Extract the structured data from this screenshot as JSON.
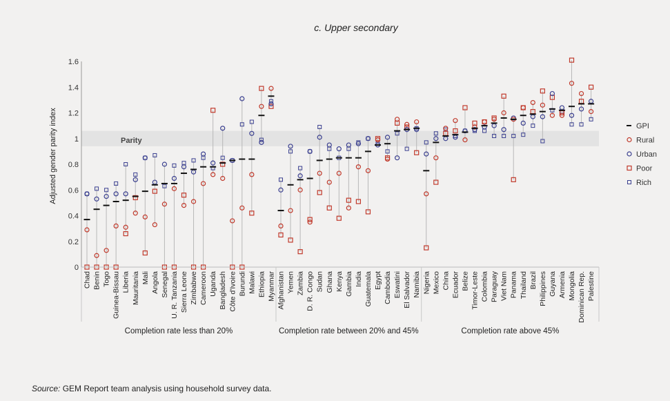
{
  "chart_data": {
    "type": "scatter",
    "title": "c. Upper secondary",
    "ylabel": "Adjusted gender parity index",
    "ylim": [
      0,
      1.6
    ],
    "yticks": [
      "0",
      "0.2",
      "0.4",
      "0.6",
      "0.8",
      "1",
      "1.2",
      "1.4",
      "1.6"
    ],
    "parity_label": "Parity",
    "parity_band": [
      0.94,
      1.06
    ],
    "legend": [
      {
        "key": "gpi",
        "label": "GPI"
      },
      {
        "key": "rural",
        "label": "Rural"
      },
      {
        "key": "urban",
        "label": "Urban"
      },
      {
        "key": "poor",
        "label": "Poor"
      },
      {
        "key": "rich",
        "label": "Rich"
      }
    ],
    "colors": {
      "red": "#c0392b",
      "blue": "#3a3f8f",
      "line": "#b8b8b8",
      "band": "#e3e3e3"
    },
    "groups": [
      {
        "label": "Completion rate less than 20%",
        "countries": [
          {
            "name": "Chad",
            "gpi": 0.37,
            "rural": 0.29,
            "urban": 0.57,
            "poor": 0.0,
            "rich": 0.57
          },
          {
            "name": "Benin",
            "gpi": 0.45,
            "rural": 0.09,
            "urban": 0.53,
            "poor": 0.0,
            "rich": 0.61
          },
          {
            "name": "Togo",
            "gpi": 0.48,
            "rural": 0.13,
            "urban": 0.55,
            "poor": 0.0,
            "rich": 0.6
          },
          {
            "name": "Guinea-Bissau",
            "gpi": 0.51,
            "rural": 0.32,
            "urban": 0.57,
            "poor": 0.0,
            "rich": 0.65
          },
          {
            "name": "Liberia",
            "gpi": 0.52,
            "rural": 0.31,
            "urban": 0.57,
            "poor": 0.26,
            "rich": 0.8
          },
          {
            "name": "Mauritania",
            "gpi": 0.55,
            "rural": 0.42,
            "urban": 0.68,
            "poor": 0.54,
            "rich": 0.72
          },
          {
            "name": "Mali",
            "gpi": 0.59,
            "rural": 0.39,
            "urban": 0.85,
            "poor": 0.11,
            "rich": 0.85
          },
          {
            "name": "Angola",
            "gpi": 0.64,
            "rural": 0.33,
            "urban": 0.66,
            "poor": 0.59,
            "rich": 0.87
          },
          {
            "name": "Senegal",
            "gpi": 0.65,
            "rural": 0.49,
            "urban": 0.8,
            "poor": 0.0,
            "rich": 0.63
          },
          {
            "name": "U. R. Tanzania",
            "gpi": 0.65,
            "rural": 0.61,
            "urban": 0.69,
            "poor": 0.0,
            "rich": 0.79
          },
          {
            "name": "Sierra Leone",
            "gpi": 0.73,
            "rural": 0.48,
            "urban": 0.78,
            "poor": 0.56,
            "rich": 0.81
          },
          {
            "name": "Zimbabwe",
            "gpi": 0.76,
            "rural": 0.51,
            "urban": 0.74,
            "poor": 0.0,
            "rich": 0.83
          },
          {
            "name": "Cameroon",
            "gpi": 0.78,
            "rural": 0.65,
            "urban": 0.88,
            "poor": 0.0,
            "rich": 0.85
          },
          {
            "name": "Uganda",
            "gpi": 0.78,
            "rural": 0.72,
            "urban": 0.81,
            "poor": 1.22,
            "rich": 0.77
          },
          {
            "name": "Bangladesh",
            "gpi": 0.81,
            "rural": 0.69,
            "urban": 1.08,
            "poor": 0.8,
            "rich": 0.85
          },
          {
            "name": "Côte d'Ivoire",
            "gpi": 0.83,
            "rural": 0.36,
            "urban": 0.83,
            "poor": 0.0,
            "rich": 0.83
          },
          {
            "name": "Burundi",
            "gpi": 0.84,
            "rural": 0.46,
            "urban": 1.31,
            "poor": 0.0,
            "rich": 1.11
          },
          {
            "name": "Malawi",
            "gpi": 0.84,
            "rural": 0.72,
            "urban": 1.04,
            "poor": 0.42,
            "rich": 1.13
          },
          {
            "name": "Ethiopia",
            "gpi": 1.18,
            "rural": 1.25,
            "urban": 0.97,
            "poor": 1.39,
            "rich": 0.99
          },
          {
            "name": "Myanmar",
            "gpi": 1.33,
            "rural": 1.39,
            "urban": 1.27,
            "poor": 1.25,
            "rich": 1.29
          }
        ]
      },
      {
        "label": "Completion rate between 20% and 45%",
        "countries": [
          {
            "name": "Afghanistan",
            "gpi": 0.44,
            "rural": 0.32,
            "urban": 0.6,
            "poor": 0.25,
            "rich": 0.68
          },
          {
            "name": "Yemen",
            "gpi": 0.64,
            "rural": 0.44,
            "urban": 0.94,
            "poor": 0.21,
            "rich": 0.9
          },
          {
            "name": "Zambia",
            "gpi": 0.68,
            "rural": 0.6,
            "urban": 0.71,
            "poor": 0.12,
            "rich": 0.77
          },
          {
            "name": "D. R. Congo",
            "gpi": 0.69,
            "rural": 0.35,
            "urban": 0.9,
            "poor": 0.37,
            "rich": 0.9
          },
          {
            "name": "Sudan",
            "gpi": 0.83,
            "rural": 0.73,
            "urban": 1.01,
            "poor": 0.58,
            "rich": 1.09
          },
          {
            "name": "Ghana",
            "gpi": 0.84,
            "rural": 0.66,
            "urban": 0.95,
            "poor": 0.46,
            "rich": 0.92
          },
          {
            "name": "Kenya",
            "gpi": 0.85,
            "rural": 0.73,
            "urban": 0.92,
            "poor": 0.38,
            "rich": 0.85
          },
          {
            "name": "Gambia",
            "gpi": 0.85,
            "rural": 0.46,
            "urban": 0.95,
            "poor": 0.52,
            "rich": 0.92
          },
          {
            "name": "India",
            "gpi": 0.85,
            "rural": 0.78,
            "urban": 0.96,
            "poor": 0.51,
            "rich": 0.97
          },
          {
            "name": "Guatemala",
            "gpi": 0.9,
            "rural": 0.75,
            "urban": 1.0,
            "poor": 0.43,
            "rich": 1.0
          },
          {
            "name": "Egypt",
            "gpi": 0.95,
            "rural": 0.99,
            "urban": 0.95,
            "poor": 1.0,
            "rich": 0.96
          },
          {
            "name": "Cambodia",
            "gpi": 0.96,
            "rural": 0.84,
            "urban": 1.01,
            "poor": 0.85,
            "rich": 0.9
          },
          {
            "name": "Eswatini",
            "gpi": 1.06,
            "rural": 1.15,
            "urban": 0.85,
            "poor": 1.12,
            "rich": 1.04
          },
          {
            "name": "El Salvador",
            "gpi": 1.07,
            "rural": 1.11,
            "urban": 1.07,
            "poor": 1.09,
            "rich": 0.92
          },
          {
            "name": "Namibia",
            "gpi": 1.08,
            "rural": 1.13,
            "urban": 1.07,
            "poor": 0.89,
            "rich": 1.08
          }
        ]
      },
      {
        "label": "Completion rate above 45%",
        "countries": [
          {
            "name": "Nigeria",
            "gpi": 0.75,
            "rural": 0.57,
            "urban": 0.88,
            "poor": 0.15,
            "rich": 0.97
          },
          {
            "name": "Mexico",
            "gpi": 0.97,
            "rural": 0.85,
            "urban": 1.0,
            "poor": 0.66,
            "rich": 1.04
          },
          {
            "name": "China",
            "gpi": 1.02,
            "rural": 1.08,
            "urban": 1.0,
            "poor": 1.04,
            "rich": 1.07
          },
          {
            "name": "Ecuador",
            "gpi": 1.03,
            "rural": 1.14,
            "urban": 1.01,
            "poor": 1.06,
            "rich": 1.02
          },
          {
            "name": "Belize",
            "gpi": 1.05,
            "rural": 0.99,
            "urban": 1.06,
            "poor": 1.24,
            "rich": 1.06
          },
          {
            "name": "Timor-Leste",
            "gpi": 1.08,
            "rural": 1.09,
            "urban": 1.07,
            "poor": 1.12,
            "rich": 1.06
          },
          {
            "name": "Colombia",
            "gpi": 1.1,
            "rural": 1.13,
            "urban": 1.09,
            "poor": 1.13,
            "rich": 1.06
          },
          {
            "name": "Paraguay",
            "gpi": 1.12,
            "rural": 1.15,
            "urban": 1.1,
            "poor": 1.16,
            "rich": 1.02
          },
          {
            "name": "Viet Nam",
            "gpi": 1.16,
            "rural": 1.2,
            "urban": 1.07,
            "poor": 1.33,
            "rich": 1.02
          },
          {
            "name": "Panama",
            "gpi": 1.15,
            "rural": 1.15,
            "urban": 1.16,
            "poor": 0.68,
            "rich": 1.02
          },
          {
            "name": "Thailand",
            "gpi": 1.18,
            "rural": 1.24,
            "urban": 1.12,
            "poor": 1.24,
            "rich": 1.03
          },
          {
            "name": "Brazil",
            "gpi": 1.19,
            "rural": 1.28,
            "urban": 1.17,
            "poor": 1.21,
            "rich": 1.1
          },
          {
            "name": "Philippines",
            "gpi": 1.21,
            "rural": 1.26,
            "urban": 1.17,
            "poor": 1.37,
            "rich": 0.98
          },
          {
            "name": "Guyana",
            "gpi": 1.23,
            "rural": 1.18,
            "urban": 1.35,
            "poor": 1.32,
            "rich": 1.22
          },
          {
            "name": "Armenia",
            "gpi": 1.22,
            "rural": 1.18,
            "urban": 1.24,
            "poor": 1.2,
            "rich": 1.21
          },
          {
            "name": "Mongolia",
            "gpi": 1.25,
            "rural": 1.43,
            "urban": 1.18,
            "poor": 1.61,
            "rich": 1.11
          },
          {
            "name": "Dominican Rep.",
            "gpi": 1.27,
            "rural": 1.35,
            "urban": 1.23,
            "poor": 1.29,
            "rich": 1.11
          },
          {
            "name": "Palestine",
            "gpi": 1.27,
            "rural": 1.21,
            "urban": 1.29,
            "poor": 1.4,
            "rich": 1.15
          }
        ]
      }
    ]
  },
  "source": {
    "label": "Source:",
    "text": " GEM Report team analysis using household survey data."
  }
}
